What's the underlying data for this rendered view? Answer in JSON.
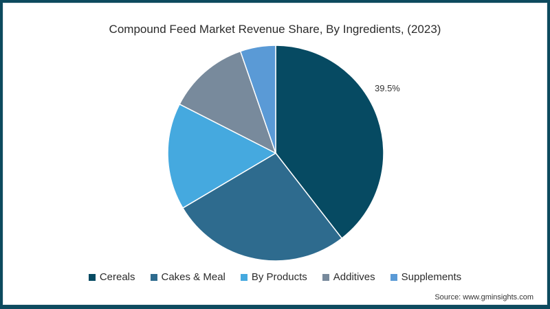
{
  "chart_data": {
    "type": "pie",
    "title": "Compound Feed Market Revenue Share, By Ingredients, (2023)",
    "categories": [
      "Cereals",
      "Cakes & Meal",
      "By Products",
      "Additives",
      "Supplements"
    ],
    "values": [
      39.5,
      27.0,
      16.0,
      12.2,
      5.3
    ],
    "colors": [
      "#064a62",
      "#2e6b8e",
      "#45a9df",
      "#788a9c",
      "#5a9ad6"
    ],
    "data_labels": [
      {
        "category": "Cereals",
        "text": "39.5%"
      }
    ],
    "legend_position": "bottom",
    "source": "Source: www.gminsights.com"
  },
  "frame_color": "#0d4a5e"
}
